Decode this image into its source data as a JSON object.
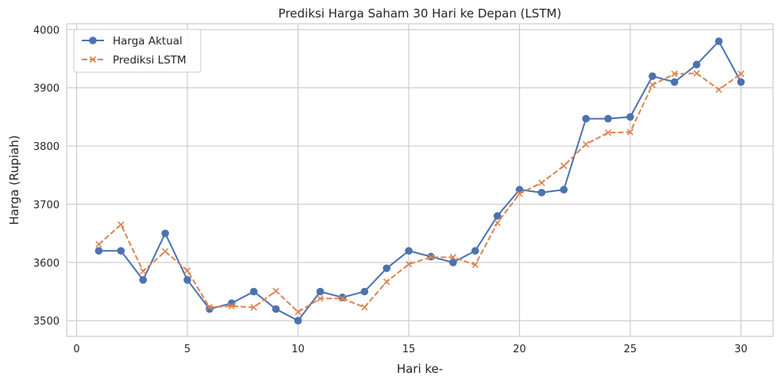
{
  "chart_data": {
    "type": "line",
    "title": "Prediksi Harga Saham 30 Hari ke Depan (LSTM)",
    "xlabel": "Hari ke-",
    "ylabel": "Harga (Rupiah)",
    "xlim": [
      -0.45,
      31.45
    ],
    "ylim": [
      3473,
      4010
    ],
    "xticks": [
      0,
      5,
      10,
      15,
      20,
      25,
      30
    ],
    "yticks": [
      3500,
      3600,
      3700,
      3800,
      3900,
      4000
    ],
    "grid": true,
    "legend_position": "top-left",
    "x": [
      1,
      2,
      3,
      4,
      5,
      6,
      7,
      8,
      9,
      10,
      11,
      12,
      13,
      14,
      15,
      16,
      17,
      18,
      19,
      20,
      21,
      22,
      23,
      24,
      25,
      26,
      27,
      28,
      29,
      30
    ],
    "series": [
      {
        "name": "Harga Aktual",
        "color": "#4c72b0",
        "marker": "circle",
        "linestyle": "solid",
        "values": [
          3620,
          3620,
          3570,
          3650,
          3570,
          3520,
          3530,
          3550,
          3520,
          3500,
          3550,
          3540,
          3550,
          3590,
          3620,
          3610,
          3600,
          3620,
          3680,
          3725,
          3720,
          3725,
          3847,
          3847,
          3850,
          3920,
          3910,
          3940,
          3980,
          3910
        ]
      },
      {
        "name": "Prediksi LSTM",
        "color": "#dd8452",
        "marker": "x",
        "linestyle": "dashed",
        "values": [
          3631,
          3665,
          3585,
          3619,
          3586,
          3523,
          3525,
          3523,
          3551,
          3515,
          3538,
          3538,
          3523,
          3567,
          3597,
          3609,
          3609,
          3596,
          3668,
          3718,
          3737,
          3766,
          3803,
          3823,
          3824,
          3905,
          3924,
          3925,
          3897,
          3924
        ]
      }
    ]
  }
}
